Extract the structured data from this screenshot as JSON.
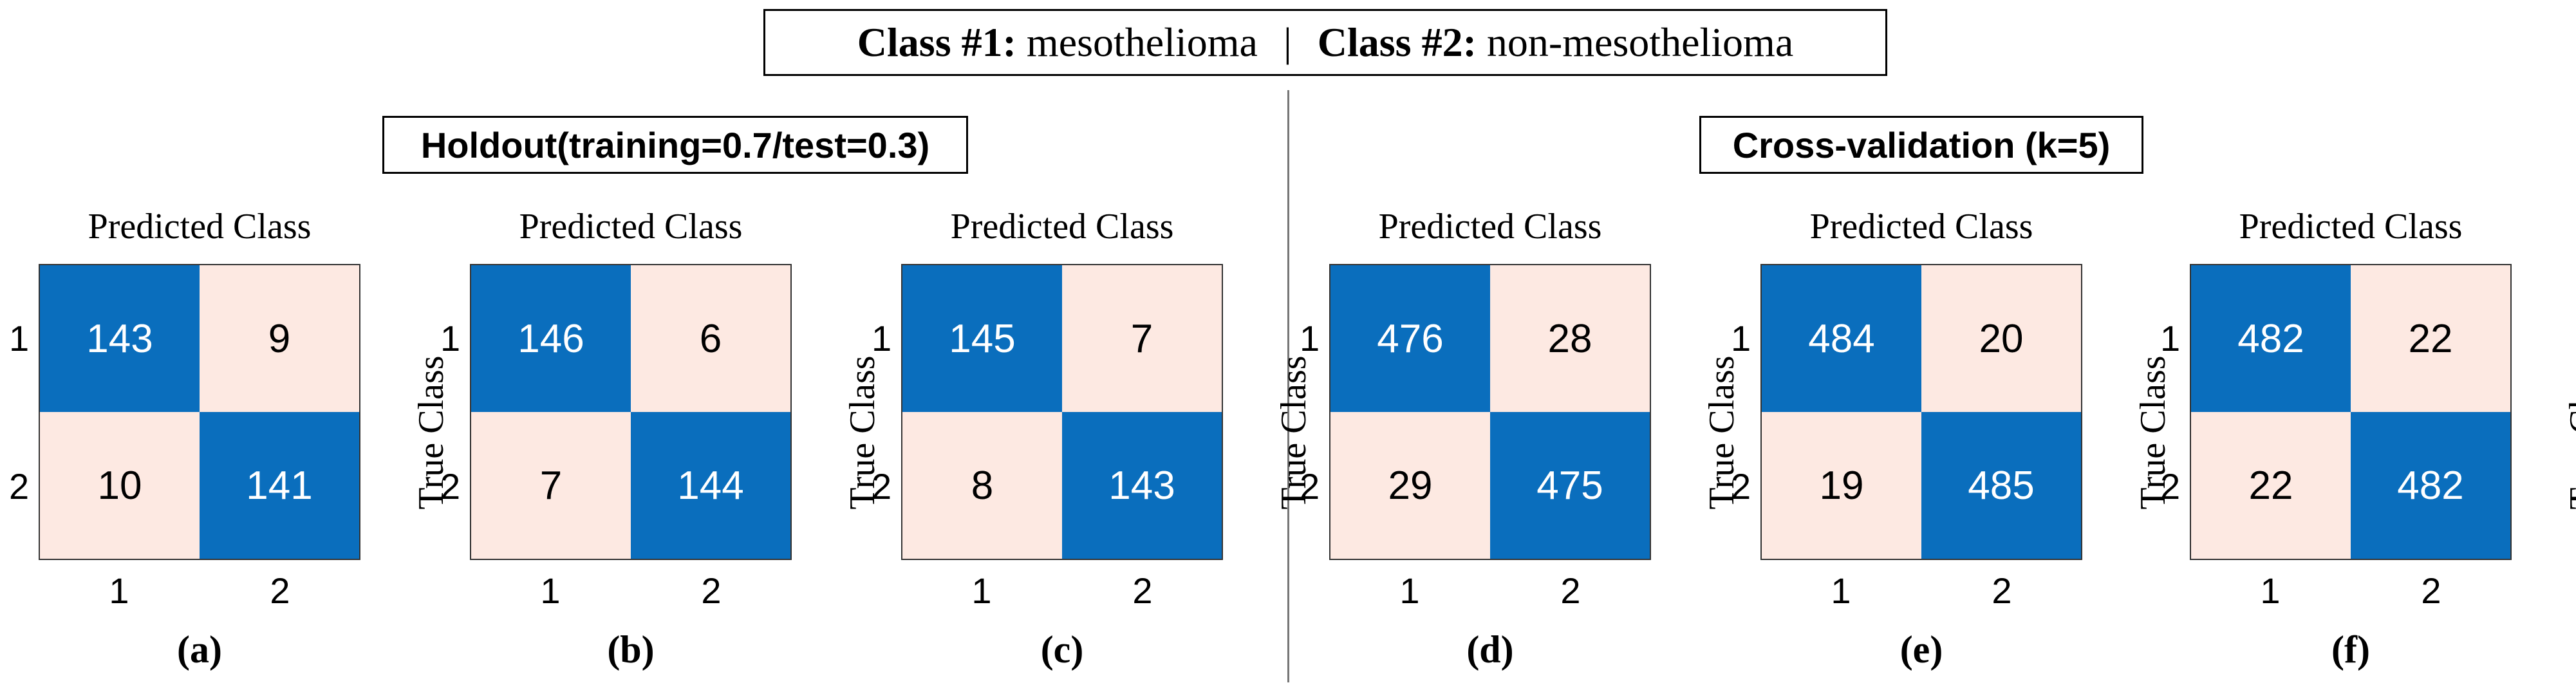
{
  "legend": {
    "class1_label": "Class #1:",
    "class1_name": "mesothelioma",
    "separator": "|",
    "class2_label": "Class #2:",
    "class2_name": "non-mesothelioma"
  },
  "sections": {
    "holdout_title": "Holdout(training=0.7/test=0.3)",
    "cv_title": "Cross-validation (k=5)"
  },
  "colors": {
    "diagonal": "#0a6ebd",
    "off_diagonal": "#fde9e2"
  },
  "chart_data": [
    {
      "type": "heatmap",
      "caption": "(a)",
      "xlabel": "Predicted Class",
      "ylabel": "True Class",
      "categories": [
        "1",
        "2"
      ],
      "matrix": [
        [
          143,
          9
        ],
        [
          10,
          141
        ]
      ]
    },
    {
      "type": "heatmap",
      "caption": "(b)",
      "xlabel": "Predicted Class",
      "ylabel": "True Class",
      "categories": [
        "1",
        "2"
      ],
      "matrix": [
        [
          146,
          6
        ],
        [
          7,
          144
        ]
      ]
    },
    {
      "type": "heatmap",
      "caption": "(c)",
      "xlabel": "Predicted Class",
      "ylabel": "True Class",
      "categories": [
        "1",
        "2"
      ],
      "matrix": [
        [
          145,
          7
        ],
        [
          8,
          143
        ]
      ]
    },
    {
      "type": "heatmap",
      "caption": "(d)",
      "xlabel": "Predicted Class",
      "ylabel": "True Class",
      "categories": [
        "1",
        "2"
      ],
      "matrix": [
        [
          476,
          28
        ],
        [
          29,
          475
        ]
      ]
    },
    {
      "type": "heatmap",
      "caption": "(e)",
      "xlabel": "Predicted Class",
      "ylabel": "True Class",
      "categories": [
        "1",
        "2"
      ],
      "matrix": [
        [
          484,
          20
        ],
        [
          19,
          485
        ]
      ]
    },
    {
      "type": "heatmap",
      "caption": "(f)",
      "xlabel": "Predicted Class",
      "ylabel": "True Class",
      "categories": [
        "1",
        "2"
      ],
      "matrix": [
        [
          482,
          22
        ],
        [
          22,
          482
        ]
      ]
    }
  ]
}
